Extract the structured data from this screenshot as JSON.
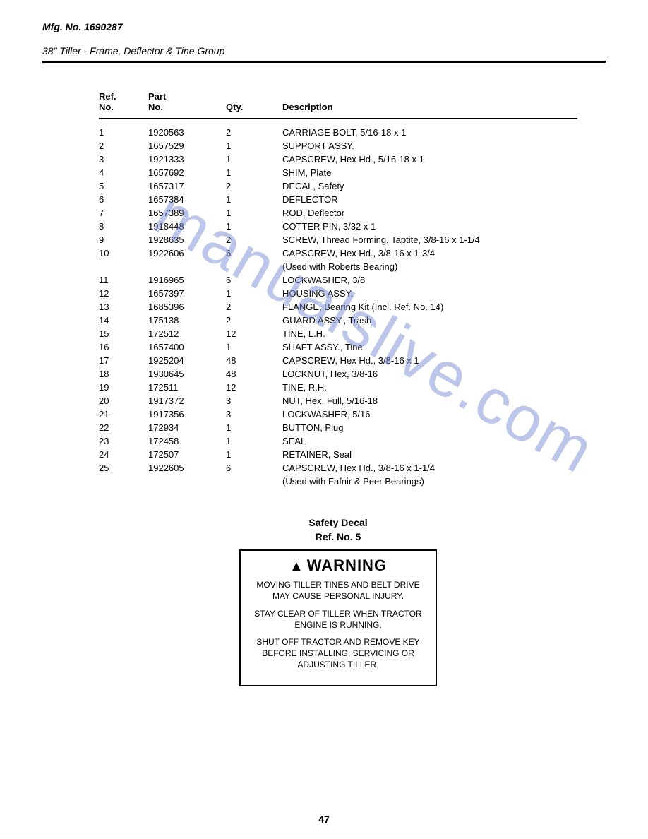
{
  "header": {
    "mfg": "Mfg. No. 1690287",
    "subtitle": "38\" Tiller - Frame, Deflector & Tine Group"
  },
  "table": {
    "headers": {
      "ref1": "Ref.",
      "ref2": "No.",
      "part1": "Part",
      "part2": "No.",
      "qty": "Qty.",
      "desc": "Description"
    },
    "rows": [
      {
        "ref": "1",
        "part": "1920563",
        "qty": "2",
        "desc": "CARRIAGE BOLT, 5/16-18 x 1"
      },
      {
        "ref": "2",
        "part": "1657529",
        "qty": "1",
        "desc": "SUPPORT ASSY."
      },
      {
        "ref": "3",
        "part": "1921333",
        "qty": "1",
        "desc": "CAPSCREW, Hex Hd., 5/16-18 x 1"
      },
      {
        "ref": "4",
        "part": "1657692",
        "qty": "1",
        "desc": "SHIM, Plate"
      },
      {
        "ref": "5",
        "part": "1657317",
        "qty": "2",
        "desc": "DECAL, Safety"
      },
      {
        "ref": "6",
        "part": "1657384",
        "qty": "1",
        "desc": "DEFLECTOR"
      },
      {
        "ref": "7",
        "part": "1657389",
        "qty": "1",
        "desc": "ROD, Deflector"
      },
      {
        "ref": "8",
        "part": "1918448",
        "qty": "1",
        "desc": "COTTER PIN, 3/32 x 1"
      },
      {
        "ref": "9",
        "part": "1928635",
        "qty": "2",
        "desc": "SCREW, Thread Forming, Taptite, 3/8-16 x 1-1/4"
      },
      {
        "ref": "10",
        "part": "1922606",
        "qty": "6",
        "desc": "CAPSCREW, Hex Hd., 3/8-16 x 1-3/4"
      },
      {
        "ref": "",
        "part": "",
        "qty": "",
        "desc": "(Used with Roberts Bearing)"
      },
      {
        "ref": "11",
        "part": "1916965",
        "qty": "6",
        "desc": "LOCKWASHER, 3/8"
      },
      {
        "ref": "12",
        "part": "1657397",
        "qty": "1",
        "desc": "HOUSING ASSY."
      },
      {
        "ref": "13",
        "part": "1685396",
        "qty": "2",
        "desc": "FLANGE, Bearing Kit (Incl. Ref. No. 14)"
      },
      {
        "ref": "14",
        "part": "175138",
        "qty": "2",
        "desc": "GUARD ASSY., Trash"
      },
      {
        "ref": "15",
        "part": "172512",
        "qty": "12",
        "desc": "TINE, L.H."
      },
      {
        "ref": "16",
        "part": "1657400",
        "qty": "1",
        "desc": "SHAFT ASSY., Tine"
      },
      {
        "ref": "17",
        "part": "1925204",
        "qty": "48",
        "desc": "CAPSCREW, Hex Hd., 3/8-16 x 1"
      },
      {
        "ref": "18",
        "part": "1930645",
        "qty": "48",
        "desc": "LOCKNUT, Hex, 3/8-16"
      },
      {
        "ref": "19",
        "part": "172511",
        "qty": "12",
        "desc": "TINE, R.H."
      },
      {
        "ref": "20",
        "part": "1917372",
        "qty": "3",
        "desc": "NUT, Hex, Full, 5/16-18"
      },
      {
        "ref": "21",
        "part": "1917356",
        "qty": "3",
        "desc": "LOCKWASHER, 5/16"
      },
      {
        "ref": "22",
        "part": "172934",
        "qty": "1",
        "desc": "BUTTON, Plug"
      },
      {
        "ref": "23",
        "part": "172458",
        "qty": "1",
        "desc": "SEAL"
      },
      {
        "ref": "24",
        "part": "172507",
        "qty": "1",
        "desc": "RETAINER, Seal"
      },
      {
        "ref": "25",
        "part": "1922605",
        "qty": "6",
        "desc": "CAPSCREW, Hex Hd., 3/8-16 x 1-1/4"
      },
      {
        "ref": "",
        "part": "",
        "qty": "",
        "desc": "(Used with Fafnir & Peer Bearings)"
      }
    ]
  },
  "safety": {
    "title1": "Safety Decal",
    "title2": "Ref. No. 5",
    "warning_head": "WARNING",
    "p1": "MOVING TILLER TINES AND BELT DRIVE MAY CAUSE PERSONAL INJURY.",
    "p2": "STAY CLEAR OF TILLER WHEN TRACTOR ENGINE IS RUNNING.",
    "p3": "SHUT OFF TRACTOR AND REMOVE KEY BEFORE INSTALLING, SERVICING OR ADJUSTING TILLER."
  },
  "page_number": "47",
  "watermark": "manualslive.com"
}
